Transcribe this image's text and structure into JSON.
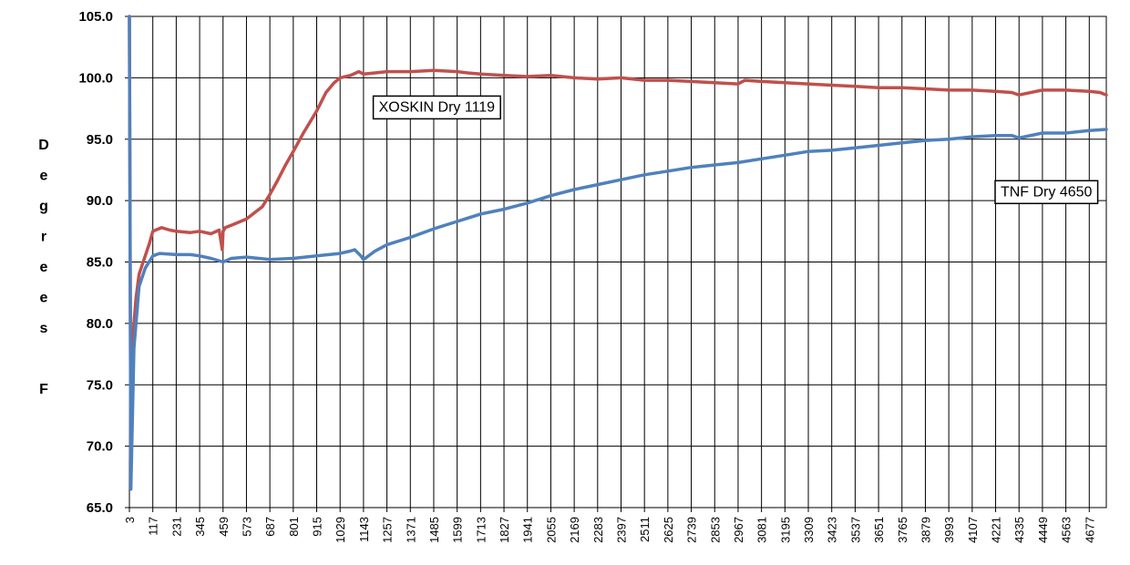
{
  "chart_data": {
    "type": "line",
    "title": "",
    "xlabel": "",
    "ylabel": "Degrees F",
    "ylim": [
      65,
      105
    ],
    "yticks": [
      "65.0",
      "70.0",
      "75.0",
      "80.0",
      "85.0",
      "90.0",
      "95.0",
      "100.0",
      "105.0"
    ],
    "xlim": [
      3,
      4760
    ],
    "xticks": [
      3,
      117,
      231,
      345,
      459,
      573,
      687,
      801,
      915,
      1029,
      1143,
      1257,
      1371,
      1485,
      1599,
      1713,
      1827,
      1941,
      2055,
      2169,
      2283,
      2397,
      2511,
      2625,
      2739,
      2853,
      2967,
      3081,
      3195,
      3309,
      3423,
      3537,
      3651,
      3765,
      3879,
      3993,
      4107,
      4221,
      4335,
      4449,
      4563,
      4677
    ],
    "grid": true,
    "series": [
      {
        "name": "XOSKIN Dry 1119",
        "color": "#c0504d",
        "x": [
          3,
          10,
          18,
          25,
          35,
          50,
          70,
          100,
          117,
          160,
          200,
          231,
          300,
          345,
          400,
          440,
          455,
          459,
          470,
          500,
          573,
          650,
          687,
          720,
          760,
          801,
          850,
          915,
          960,
          1000,
          1029,
          1080,
          1120,
          1143,
          1200,
          1257,
          1371,
          1485,
          1599,
          1650,
          1713,
          1827,
          1941,
          2055,
          2169,
          2283,
          2397,
          2511,
          2625,
          2739,
          2853,
          2967,
          3000,
          3081,
          3195,
          3309,
          3423,
          3537,
          3651,
          3765,
          3879,
          3993,
          4107,
          4221,
          4300,
          4335,
          4449,
          4563,
          4677,
          4730,
          4760
        ],
        "y": [
          105.0,
          69.0,
          78.0,
          80.0,
          82.0,
          84.0,
          85.0,
          86.5,
          87.5,
          87.8,
          87.6,
          87.5,
          87.4,
          87.5,
          87.3,
          87.6,
          86.0,
          87.5,
          87.8,
          88.0,
          88.5,
          89.5,
          90.5,
          91.5,
          92.8,
          94.0,
          95.5,
          97.3,
          98.8,
          99.6,
          100.0,
          100.2,
          100.5,
          100.3,
          100.4,
          100.5,
          100.5,
          100.6,
          100.5,
          100.4,
          100.3,
          100.2,
          100.1,
          100.2,
          100.0,
          99.9,
          100.0,
          99.8,
          99.8,
          99.7,
          99.6,
          99.5,
          99.8,
          99.7,
          99.6,
          99.5,
          99.4,
          99.3,
          99.2,
          99.2,
          99.1,
          99.0,
          99.0,
          98.9,
          98.8,
          98.6,
          99.0,
          99.0,
          98.9,
          98.8,
          98.6
        ]
      },
      {
        "name": "TNF Dry 4650",
        "color": "#4f81bd",
        "x": [
          3,
          10,
          25,
          50,
          80,
          117,
          150,
          231,
          300,
          345,
          400,
          459,
          500,
          573,
          687,
          801,
          915,
          1029,
          1080,
          1100,
          1130,
          1143,
          1200,
          1257,
          1371,
          1485,
          1599,
          1713,
          1827,
          1941,
          2055,
          2169,
          2283,
          2397,
          2511,
          2625,
          2739,
          2853,
          2967,
          3081,
          3195,
          3309,
          3423,
          3537,
          3651,
          3765,
          3879,
          3993,
          4107,
          4221,
          4300,
          4335,
          4449,
          4563,
          4677,
          4760
        ],
        "y": [
          105.0,
          66.5,
          78.0,
          83.0,
          84.5,
          85.5,
          85.7,
          85.6,
          85.6,
          85.5,
          85.3,
          85.0,
          85.3,
          85.4,
          85.2,
          85.3,
          85.5,
          85.7,
          85.9,
          86.0,
          85.5,
          85.2,
          85.9,
          86.4,
          87.0,
          87.7,
          88.3,
          88.9,
          89.3,
          89.8,
          90.4,
          90.9,
          91.3,
          91.7,
          92.1,
          92.4,
          92.7,
          92.9,
          93.1,
          93.4,
          93.7,
          94.0,
          94.1,
          94.3,
          94.5,
          94.7,
          94.9,
          95.0,
          95.2,
          95.3,
          95.3,
          95.1,
          95.5,
          95.5,
          95.7,
          95.8
        ]
      }
    ],
    "annotations": [
      {
        "text": "XOSKIN Dry 1119",
        "x": 1500,
        "y": 97.7
      },
      {
        "text": "TNF Dry 4650",
        "x": 4468,
        "y": 90.8
      }
    ]
  }
}
